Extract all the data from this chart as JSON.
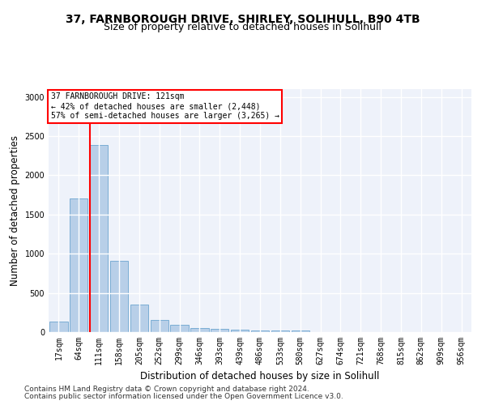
{
  "title1": "37, FARNBOROUGH DRIVE, SHIRLEY, SOLIHULL, B90 4TB",
  "title2": "Size of property relative to detached houses in Solihull",
  "xlabel": "Distribution of detached houses by size in Solihull",
  "ylabel": "Number of detached properties",
  "categories": [
    "17sqm",
    "64sqm",
    "111sqm",
    "158sqm",
    "205sqm",
    "252sqm",
    "299sqm",
    "346sqm",
    "393sqm",
    "439sqm",
    "486sqm",
    "533sqm",
    "580sqm",
    "627sqm",
    "674sqm",
    "721sqm",
    "768sqm",
    "815sqm",
    "862sqm",
    "909sqm",
    "956sqm"
  ],
  "values": [
    130,
    1700,
    2390,
    910,
    355,
    150,
    90,
    55,
    45,
    30,
    25,
    20,
    25,
    0,
    0,
    0,
    0,
    0,
    0,
    0,
    0
  ],
  "bar_color": "#b8cfe8",
  "bar_edge_color": "#7aadd4",
  "annotation_text": "37 FARNBOROUGH DRIVE: 121sqm\n← 42% of detached houses are smaller (2,448)\n57% of semi-detached houses are larger (3,265) →",
  "annotation_box_color": "white",
  "annotation_box_edge": "red",
  "ylim": [
    0,
    3100
  ],
  "yticks": [
    0,
    500,
    1000,
    1500,
    2000,
    2500,
    3000
  ],
  "footer1": "Contains HM Land Registry data © Crown copyright and database right 2024.",
  "footer2": "Contains public sector information licensed under the Open Government Licence v3.0.",
  "bg_color": "#eef2fa",
  "grid_color": "white",
  "title_fontsize": 10,
  "subtitle_fontsize": 9,
  "axis_label_fontsize": 8.5,
  "tick_fontsize": 7,
  "footer_fontsize": 6.5,
  "red_line_index": 2
}
